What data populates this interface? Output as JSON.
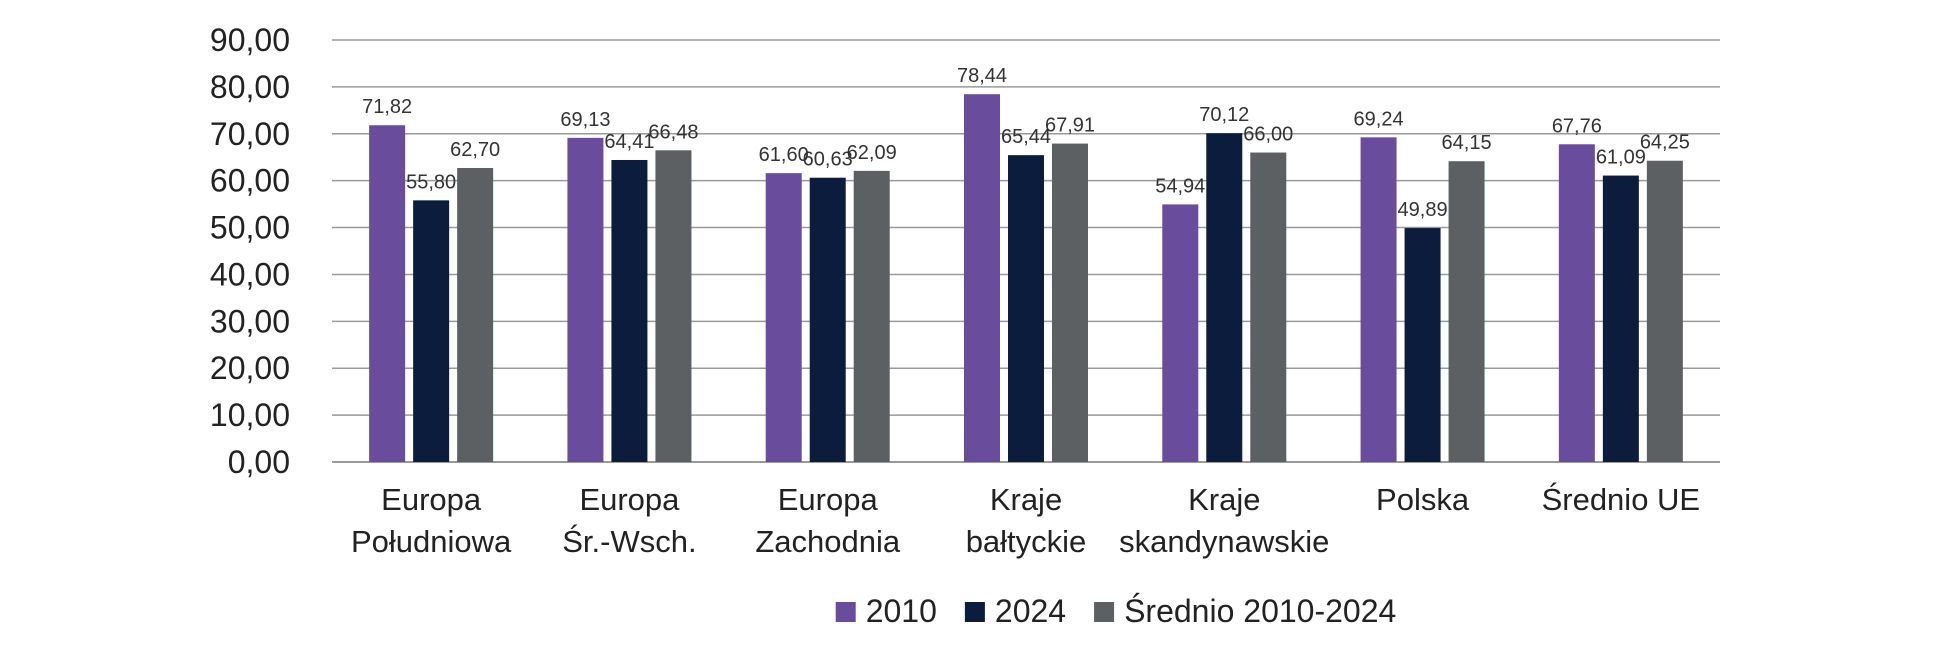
{
  "chart_data": {
    "type": "bar",
    "categories": [
      [
        "Europa",
        "Południowa"
      ],
      [
        "Europa",
        "Śr.-Wsch."
      ],
      [
        "Europa",
        "Zachodnia"
      ],
      [
        "Kraje",
        "bałtyckie"
      ],
      [
        "Kraje",
        "skandynawskie"
      ],
      [
        "Polska"
      ],
      [
        "Średnio UE"
      ]
    ],
    "series": [
      {
        "name": "2010",
        "color": "#6a4c9c",
        "values": [
          71.82,
          69.13,
          61.6,
          78.44,
          54.94,
          69.24,
          67.76
        ],
        "labels": [
          "71,82",
          "69,13",
          "61,60",
          "78,44",
          "54,94",
          "69,24",
          "67,76"
        ]
      },
      {
        "name": "2024",
        "color": "#0c1c3d",
        "values": [
          55.8,
          64.41,
          60.63,
          65.44,
          70.12,
          49.89,
          61.09
        ],
        "labels": [
          "55,80",
          "64,41",
          "60,63",
          "65,44",
          "70,12",
          "49,89",
          "61,09"
        ]
      },
      {
        "name": "Średnio 2010-2024",
        "color": "#5d6063",
        "values": [
          62.7,
          66.48,
          62.09,
          67.91,
          66.0,
          64.15,
          64.25
        ],
        "labels": [
          "62,70",
          "66,48",
          "62,09",
          "67,91",
          "66,00",
          "64,15",
          "64,25"
        ]
      }
    ],
    "ylim": [
      0,
      90
    ],
    "yticks": [
      0,
      10,
      20,
      30,
      40,
      50,
      60,
      70,
      80,
      90
    ],
    "ytick_labels": [
      "0,00",
      "10,00",
      "20,00",
      "30,00",
      "40,00",
      "50,00",
      "60,00",
      "70,00",
      "80,00",
      "90,00"
    ],
    "grid": true,
    "legend_position": "bottom",
    "title": "",
    "xlabel": "",
    "ylabel": ""
  }
}
